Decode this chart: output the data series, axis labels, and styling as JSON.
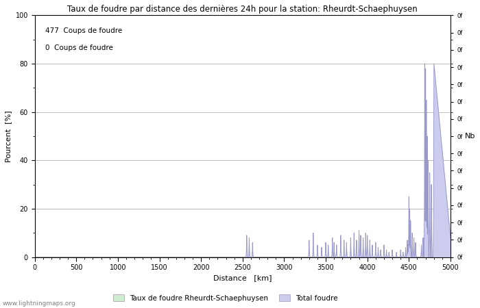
{
  "title": "Taux de foudre par distance des dernières 24h pour la station: Rheurdt-Schaephuysen",
  "xlabel": "Distance   [km]",
  "ylabel_left": "Pourcent  [%]",
  "ylabel_right": "Nb",
  "annotation_line1": "477  Coups de foudre",
  "annotation_line2": "0  Coups de foudre",
  "xlim": [
    0,
    5000
  ],
  "ylim": [
    0,
    100
  ],
  "xticks": [
    0,
    500,
    1000,
    1500,
    2000,
    2500,
    3000,
    3500,
    4000,
    4500,
    5000
  ],
  "yticks_left": [
    0,
    20,
    40,
    60,
    80,
    100
  ],
  "legend_label1": "Taux de foudre Rheurdt-Schaephuysen",
  "legend_label2": "Total foudre",
  "line_color": "#9999cc",
  "fill_color": "#ccccee",
  "green_patch_color": "#cceecc",
  "background_color": "#ffffff",
  "grid_color": "#bbbbbb",
  "watermark": "www.lightningmaps.org"
}
